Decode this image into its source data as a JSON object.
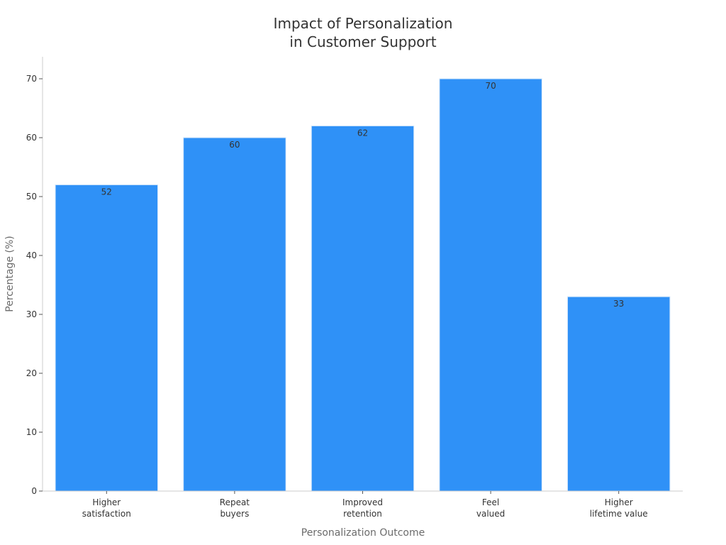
{
  "chart_data": {
    "type": "bar",
    "title": [
      "Impact of Personalization",
      "in Customer Support"
    ],
    "xlabel": "Personalization Outcome",
    "ylabel": "Percentage (%)",
    "categories": [
      [
        "Higher",
        "satisfaction"
      ],
      [
        "Repeat",
        "buyers"
      ],
      [
        "Improved",
        "retention"
      ],
      [
        "Feel",
        "valued"
      ],
      [
        "Higher",
        "lifetime value"
      ]
    ],
    "values": [
      52,
      60,
      62,
      70,
      33
    ],
    "data_labels": [
      "52",
      "60",
      "62",
      "70",
      "33"
    ],
    "ylim": [
      0,
      70
    ],
    "yticks": [
      0,
      10,
      20,
      30,
      40,
      50,
      60,
      70
    ],
    "grid": false,
    "legend": "none",
    "colors": {
      "bar": "#2F91F7",
      "axis": "#cccccc",
      "text": "#333333",
      "label": "#6b6b6b"
    }
  }
}
